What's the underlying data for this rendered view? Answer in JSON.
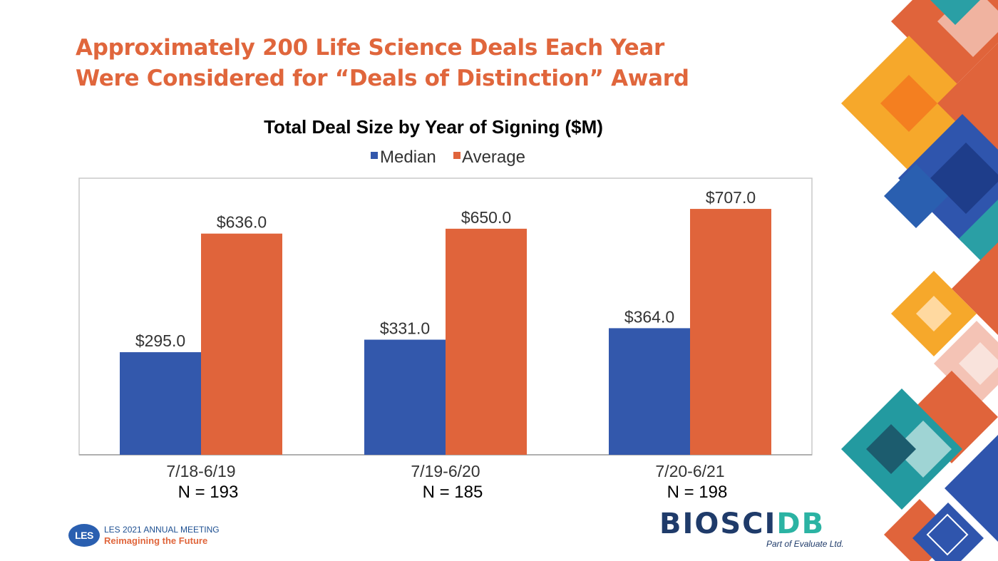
{
  "slide": {
    "title_line1": "Approximately 200 Life Science Deals Each Year",
    "title_line2": "Were Considered for “Deals of Distinction” Award"
  },
  "chart_data": {
    "type": "bar",
    "title": "Total Deal Size by Year of Signing ($M)",
    "categories": [
      "7/18-6/19",
      "7/19-6/20",
      "7/20-6/21"
    ],
    "sample_sizes": [
      "N = 193",
      "N = 185",
      "N = 198"
    ],
    "series": [
      {
        "name": "Median",
        "values": [
          295.0,
          331.0,
          364.0
        ],
        "labels": [
          "$295.0",
          "$331.0",
          "$364.0"
        ],
        "color": "#3358ac"
      },
      {
        "name": "Average",
        "values": [
          636.0,
          650.0,
          707.0
        ],
        "labels": [
          "$636.0",
          "$650.0",
          "$707.0"
        ],
        "color": "#e0643b"
      }
    ],
    "ylim": [
      0,
      800
    ],
    "grid": false,
    "legend": "top-center",
    "xlabel": "",
    "ylabel": ""
  },
  "footer": {
    "les_badge": "LES",
    "les_line1": "LES 2021 ANNUAL MEETING",
    "les_line2": "Reimagining the Future",
    "logo_bio": "BIOSCI",
    "logo_db": "DB",
    "logo_sub": "Part of Evaluate Ltd."
  },
  "colors": {
    "title_orange": "#e0663c",
    "median_blue": "#3358ac",
    "average_orange": "#e0643b"
  }
}
